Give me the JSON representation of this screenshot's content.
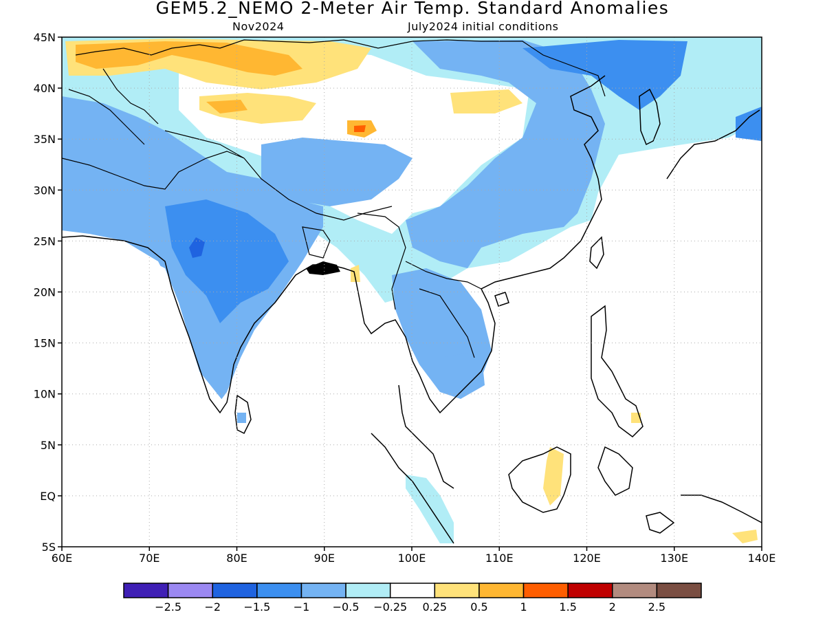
{
  "title": "GEM5.2_NEMO 2-Meter Air Temp. Standard Anomalies",
  "subtitle_left": "Nov2024",
  "subtitle_right": "July2024 initial conditions",
  "map": {
    "lon_range": [
      60,
      140
    ],
    "lat_range": [
      -5,
      45
    ],
    "grid": "dotted",
    "x_ticks": [
      {
        "value": 60,
        "label": "60E"
      },
      {
        "value": 70,
        "label": "70E"
      },
      {
        "value": 80,
        "label": "80E"
      },
      {
        "value": 90,
        "label": "90E"
      },
      {
        "value": 100,
        "label": "100E"
      },
      {
        "value": 110,
        "label": "110E"
      },
      {
        "value": 120,
        "label": "120E"
      },
      {
        "value": 130,
        "label": "130E"
      },
      {
        "value": 140,
        "label": "140E"
      }
    ],
    "y_ticks": [
      {
        "value": 45,
        "label": "45N"
      },
      {
        "value": 40,
        "label": "40N"
      },
      {
        "value": 35,
        "label": "35N"
      },
      {
        "value": 30,
        "label": "30N"
      },
      {
        "value": 25,
        "label": "25N"
      },
      {
        "value": 20,
        "label": "20N"
      },
      {
        "value": 15,
        "label": "15N"
      },
      {
        "value": 10,
        "label": "10N"
      },
      {
        "value": 5,
        "label": "5N"
      },
      {
        "value": 0,
        "label": "EQ"
      },
      {
        "value": -5,
        "label": "5S"
      }
    ]
  },
  "colorbar": {
    "colors": [
      "#3f1fb5",
      "#9b88f2",
      "#1f63e0",
      "#3c8ff0",
      "#74b3f3",
      "#b1edf6",
      "#ffffff",
      "#ffe27a",
      "#ffb732",
      "#ff5e00",
      "#c00000",
      "#b28b7f",
      "#7a4e42"
    ],
    "labels": [
      "−2.5",
      "−2",
      "−1.5",
      "−1",
      "−0.5",
      "−0.25",
      "0.25",
      "0.5",
      "1",
      "1.5",
      "2",
      "2.5"
    ]
  }
}
